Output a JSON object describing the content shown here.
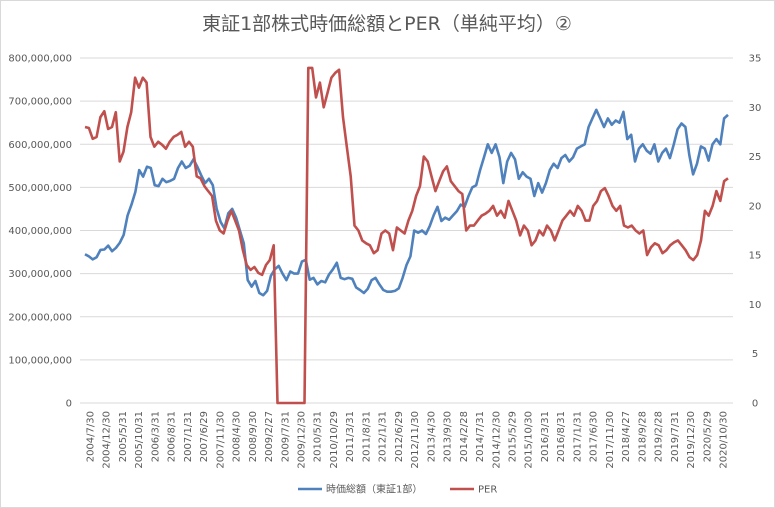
{
  "chart_data": {
    "type": "line",
    "title": "東証1部株式時価総額とPER（単純平均）②",
    "xlabel": "",
    "ylabel_left": "",
    "ylabel_right": "",
    "ylim_left": [
      0,
      800000000
    ],
    "ylim_right": [
      0,
      35
    ],
    "yticks_left": [
      "0",
      "100,000,000",
      "200,000,000",
      "300,000,000",
      "400,000,000",
      "500,000,000",
      "600,000,000",
      "700,000,000",
      "800,000,000"
    ],
    "yticks_right": [
      "0",
      "5",
      "10",
      "15",
      "20",
      "25",
      "30",
      "35"
    ],
    "xticks": [
      "2004/7/30",
      "2004/12/30",
      "2005/5/31",
      "2005/10/31",
      "2006/3/31",
      "2006/8/31",
      "2007/1/31",
      "2007/6/29",
      "2007/11/30",
      "2008/4/30",
      "2008/9/30",
      "2009/2/27",
      "2009/7/31",
      "2009/12/30",
      "2010/5/31",
      "2010/10/29",
      "2011/3/31",
      "2011/8/31",
      "2012/1/31",
      "2012/6/29",
      "2012/11/30",
      "2013/4/30",
      "2013/9/30",
      "2014/2/28",
      "2014/7/31",
      "2014/12/30",
      "2015/5/29",
      "2015/10/30",
      "2016/3/31",
      "2016/8/31",
      "2017/1/31",
      "2017/6/30",
      "2017/11/30",
      "2018/4/27",
      "2018/9/28",
      "2019/2/28",
      "2019/7/31",
      "2019/12/30",
      "2020/5/29",
      "2020/10/30"
    ],
    "grid": true,
    "legend_position": "bottom",
    "series": [
      {
        "name": "時価総額（東証1部）",
        "axis": "left",
        "color": "#4f81bd",
        "values": [
          345000000,
          340000000,
          333000000,
          338000000,
          355000000,
          356000000,
          365000000,
          352000000,
          360000000,
          372000000,
          390000000,
          435000000,
          460000000,
          490000000,
          540000000,
          525000000,
          548000000,
          545000000,
          505000000,
          503000000,
          520000000,
          512000000,
          515000000,
          520000000,
          545000000,
          560000000,
          545000000,
          550000000,
          565000000,
          548000000,
          528000000,
          510000000,
          520000000,
          505000000,
          450000000,
          420000000,
          405000000,
          440000000,
          450000000,
          430000000,
          400000000,
          370000000,
          285000000,
          270000000,
          283000000,
          255000000,
          250000000,
          260000000,
          295000000,
          310000000,
          318000000,
          300000000,
          285000000,
          305000000,
          300000000,
          300000000,
          328000000,
          332000000,
          286000000,
          290000000,
          275000000,
          283000000,
          280000000,
          298000000,
          310000000,
          325000000,
          290000000,
          287000000,
          290000000,
          288000000,
          268000000,
          262000000,
          255000000,
          265000000,
          285000000,
          290000000,
          275000000,
          262000000,
          258000000,
          258000000,
          260000000,
          266000000,
          290000000,
          320000000,
          340000000,
          400000000,
          395000000,
          400000000,
          392000000,
          410000000,
          435000000,
          455000000,
          422000000,
          430000000,
          425000000,
          435000000,
          445000000,
          460000000,
          455000000,
          480000000,
          500000000,
          505000000,
          540000000,
          570000000,
          600000000,
          580000000,
          600000000,
          570000000,
          510000000,
          560000000,
          580000000,
          565000000,
          520000000,
          535000000,
          525000000,
          520000000,
          480000000,
          510000000,
          488000000,
          510000000,
          540000000,
          555000000,
          545000000,
          568000000,
          575000000,
          560000000,
          570000000,
          590000000,
          595000000,
          600000000,
          640000000,
          660000000,
          680000000,
          660000000,
          640000000,
          660000000,
          645000000,
          655000000,
          650000000,
          675000000,
          612000000,
          622000000,
          560000000,
          590000000,
          600000000,
          585000000,
          578000000,
          600000000,
          560000000,
          580000000,
          590000000,
          568000000,
          600000000,
          635000000,
          648000000,
          640000000,
          575000000,
          530000000,
          555000000,
          595000000,
          590000000,
          562000000,
          600000000,
          612000000,
          600000000,
          660000000,
          668000000
        ]
      },
      {
        "name": "PER",
        "axis": "right",
        "color": "#c0504d",
        "values": [
          28.0,
          27.9,
          26.8,
          27.0,
          29.0,
          29.6,
          27.8,
          28.0,
          29.5,
          24.5,
          25.5,
          28.0,
          29.5,
          33.0,
          32.0,
          33.0,
          32.5,
          27.0,
          26.0,
          26.5,
          26.2,
          25.8,
          26.5,
          27.0,
          27.2,
          27.5,
          26.0,
          26.5,
          26.0,
          23.0,
          22.8,
          22.0,
          21.5,
          21.0,
          18.5,
          17.5,
          17.2,
          18.5,
          19.5,
          18.5,
          17.5,
          15.5,
          14.0,
          13.5,
          13.8,
          13.2,
          13.0,
          14.0,
          14.5,
          16.0,
          0.0,
          0.0,
          0.0,
          0.0,
          0.0,
          0.0,
          0.0,
          0.0,
          34.0,
          34.0,
          31.0,
          32.5,
          30.0,
          31.5,
          33.0,
          33.5,
          33.8,
          29.0,
          26.0,
          23.0,
          18.0,
          17.5,
          16.5,
          16.2,
          16.0,
          15.2,
          15.5,
          17.2,
          17.5,
          17.2,
          15.5,
          17.8,
          17.5,
          17.2,
          18.5,
          19.5,
          21.0,
          22.0,
          25.0,
          24.5,
          23.0,
          21.5,
          22.5,
          23.5,
          24.0,
          22.5,
          22.0,
          21.5,
          21.2,
          17.5,
          18.0,
          18.0,
          18.5,
          19.0,
          19.2,
          19.5,
          20.0,
          19.0,
          19.5,
          18.8,
          20.5,
          19.5,
          18.5,
          17.0,
          18.0,
          17.5,
          16.0,
          16.5,
          17.5,
          17.0,
          18.0,
          17.5,
          16.5,
          17.5,
          18.5,
          19.0,
          19.5,
          19.0,
          20.0,
          19.5,
          18.5,
          18.5,
          20.0,
          20.5,
          21.5,
          21.8,
          21.0,
          20.0,
          19.5,
          20.0,
          18.0,
          17.8,
          18.0,
          17.5,
          17.2,
          17.5,
          15.0,
          15.8,
          16.2,
          16.0,
          15.2,
          15.5,
          16.0,
          16.3,
          16.5,
          16.0,
          15.5,
          14.8,
          14.5,
          15.0,
          16.5,
          19.5,
          19.0,
          20.0,
          21.5,
          20.5,
          22.5,
          22.8
        ]
      }
    ]
  }
}
